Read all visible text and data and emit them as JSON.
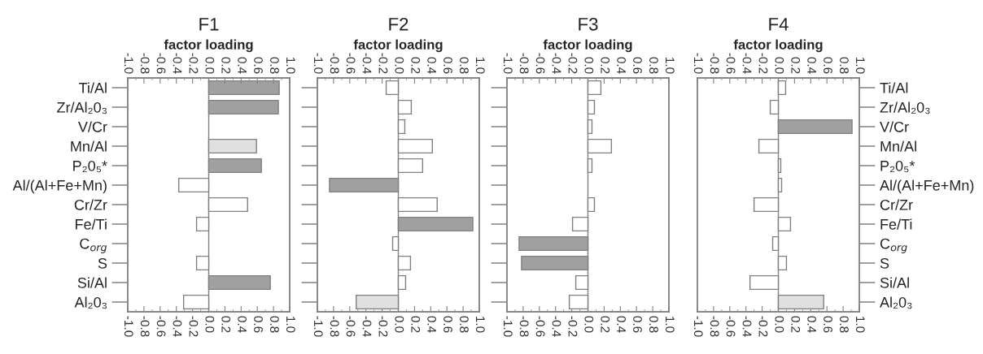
{
  "chart_data": [
    {
      "type": "bar",
      "orientation": "horizontal",
      "title": "F1",
      "x2label": "factor loading",
      "categories": [
        "Ti/Al",
        "Zr/Al₂0₃",
        "V/Cr",
        "Mn/Al",
        "P₂0₅*",
        "Al/(Al+Fe+Mn)",
        "Cr/Zr",
        "Fe/Ti",
        "C$_{org}$",
        "S",
        "Si/Al",
        "Al₂0₃"
      ],
      "values": [
        0.87,
        0.86,
        null,
        0.59,
        0.65,
        -0.37,
        0.48,
        -0.15,
        null,
        -0.15,
        0.76,
        -0.31
      ],
      "colors": [
        "#a0a0a0",
        "#a0a0a0",
        "#ffffff",
        "#e0e0e0",
        "#a0a0a0",
        "#ffffff",
        "#ffffff",
        "#ffffff",
        "#ffffff",
        "#ffffff",
        "#a0a0a0",
        "#ffffff"
      ],
      "xlim": [
        -1.0,
        1.0
      ],
      "xticks": [
        {
          "value": -1.0,
          "label": "-1.0"
        },
        {
          "value": -0.8,
          "label": "-0.8"
        },
        {
          "value": -0.6,
          "label": "-0.6"
        },
        {
          "value": -0.4,
          "label": "-0.4"
        },
        {
          "value": -0.2,
          "label": "-0.2"
        },
        {
          "value": 0.0,
          "label": "0.0"
        },
        {
          "value": 0.2,
          "label": "0.2"
        },
        {
          "value": 0.4,
          "label": "0.4"
        },
        {
          "value": 0.6,
          "label": "0.6"
        },
        {
          "value": 0.8,
          "label": "0.8"
        },
        {
          "value": 1.0,
          "label": "1.0"
        }
      ],
      "x2lim": [
        -1.0,
        1.0
      ],
      "x2ticks": [
        {
          "value": -1.0,
          "label": "-1.0"
        },
        {
          "value": -0.8,
          "label": "-0.8"
        },
        {
          "value": -0.6,
          "label": "-0.6"
        },
        {
          "value": -0.4,
          "label": "-0.4"
        },
        {
          "value": -0.2,
          "label": "-0.2"
        },
        {
          "value": 0.0,
          "label": "0.0"
        },
        {
          "value": 0.2,
          "label": "0.2"
        },
        {
          "value": 0.4,
          "label": "0.4"
        },
        {
          "value": 0.6,
          "label": "0.6"
        },
        {
          "value": 0.8,
          "label": "0.8"
        },
        {
          "value": 1.0,
          "label": "1.0"
        }
      ],
      "ref_lines": [
        {
          "axis": "x",
          "value": 0.0
        }
      ],
      "grid": false,
      "legend": false
    },
    {
      "type": "bar",
      "orientation": "horizontal",
      "title": "F2",
      "x2label": "factor loading",
      "tick_labels": "x",
      "categories": [
        null,
        null,
        null,
        null,
        null,
        null,
        null,
        null,
        null,
        null,
        null,
        null
      ],
      "values": [
        -0.15,
        0.16,
        0.08,
        0.42,
        0.3,
        -0.85,
        0.48,
        0.92,
        -0.07,
        0.15,
        0.09,
        -0.52
      ],
      "colors": [
        "#ffffff",
        "#ffffff",
        "#ffffff",
        "#ffffff",
        "#ffffff",
        "#a0a0a0",
        "#ffffff",
        "#a0a0a0",
        "#ffffff",
        "#ffffff",
        "#ffffff",
        "#e0e0e0"
      ],
      "xlim": [
        -1.0,
        1.0
      ],
      "xticks": [
        {
          "value": -1.0,
          "label": "-1.0"
        },
        {
          "value": -0.8,
          "label": "-0.8"
        },
        {
          "value": -0.6,
          "label": "-0.6"
        },
        {
          "value": -0.4,
          "label": "-0.4"
        },
        {
          "value": -0.2,
          "label": "-0.2"
        },
        {
          "value": 0.0,
          "label": "0.0"
        },
        {
          "value": 0.2,
          "label": "0.2"
        },
        {
          "value": 0.4,
          "label": "0.4"
        },
        {
          "value": 0.6,
          "label": "0.6"
        },
        {
          "value": 0.8,
          "label": "0.8"
        },
        {
          "value": 1.0,
          "label": "1.0"
        }
      ],
      "x2lim": [
        -1.0,
        1.0
      ],
      "x2ticks": [
        {
          "value": -1.0,
          "label": "-1.0"
        },
        {
          "value": -0.8,
          "label": "-0.8"
        },
        {
          "value": -0.6,
          "label": "-0.6"
        },
        {
          "value": -0.4,
          "label": "-0.4"
        },
        {
          "value": -0.2,
          "label": "-0.2"
        },
        {
          "value": 0.0,
          "label": "0.0"
        },
        {
          "value": 0.2,
          "label": "0.2"
        },
        {
          "value": 0.4,
          "label": "0.4"
        },
        {
          "value": 0.6,
          "label": "0.6"
        },
        {
          "value": 0.8,
          "label": "0.8"
        },
        {
          "value": 1.0,
          "label": "1.0"
        }
      ],
      "ref_lines": [
        {
          "axis": "x",
          "value": 0.0
        }
      ],
      "grid": false,
      "legend": false
    },
    {
      "type": "bar",
      "orientation": "horizontal",
      "title": "F3",
      "x2label": "factor loading",
      "tick_labels": "x",
      "categories": [
        null,
        null,
        null,
        null,
        null,
        null,
        null,
        null,
        null,
        null,
        null,
        null
      ],
      "values": [
        0.16,
        0.08,
        0.05,
        0.29,
        0.05,
        null,
        0.08,
        -0.19,
        -0.85,
        -0.82,
        -0.15,
        -0.23
      ],
      "colors": [
        "#ffffff",
        "#ffffff",
        "#ffffff",
        "#ffffff",
        "#ffffff",
        "#ffffff",
        "#ffffff",
        "#ffffff",
        "#a0a0a0",
        "#a0a0a0",
        "#ffffff",
        "#ffffff"
      ],
      "xlim": [
        -1.0,
        1.0
      ],
      "xticks": [
        {
          "value": -1.0,
          "label": "-1.0"
        },
        {
          "value": -0.8,
          "label": "-0.8"
        },
        {
          "value": -0.6,
          "label": "-0.6"
        },
        {
          "value": -0.4,
          "label": "-0.4"
        },
        {
          "value": -0.2,
          "label": "-0.2"
        },
        {
          "value": 0.0,
          "label": "0.0"
        },
        {
          "value": 0.2,
          "label": "0.2"
        },
        {
          "value": 0.4,
          "label": "0.4"
        },
        {
          "value": 0.6,
          "label": "0.6"
        },
        {
          "value": 0.8,
          "label": "0.8"
        },
        {
          "value": 1.0,
          "label": "1.0"
        }
      ],
      "x2lim": [
        -1.0,
        1.0
      ],
      "x2ticks": [
        {
          "value": -1.0,
          "label": "-1.0"
        },
        {
          "value": -0.8,
          "label": "-0.8"
        },
        {
          "value": -0.6,
          "label": "-0.6"
        },
        {
          "value": -0.4,
          "label": "-0.4"
        },
        {
          "value": -0.2,
          "label": "-0.2"
        },
        {
          "value": 0.0,
          "label": "0.0"
        },
        {
          "value": 0.2,
          "label": "0.2"
        },
        {
          "value": 0.4,
          "label": "0.4"
        },
        {
          "value": 0.6,
          "label": "0.6"
        },
        {
          "value": 0.8,
          "label": "0.8"
        },
        {
          "value": 1.0,
          "label": "1.0"
        }
      ],
      "ref_lines": [
        {
          "axis": "x",
          "value": 0.0
        }
      ],
      "grid": false,
      "legend": false
    },
    {
      "type": "bar",
      "orientation": "horizontal",
      "title": "F4",
      "x2label": "factor loading",
      "categories": [
        "Ti/Al",
        "Zr/Al₂0₃",
        "V/Cr",
        "Mn/Al",
        "P₂0₅*",
        "Al/(Al+Fe+Mn)",
        "Cr/Zr",
        "Fe/Ti",
        "C$_{org}$",
        "S",
        "Si/Al",
        "Al₂0₃"
      ],
      "values": [
        0.09,
        -0.1,
        0.91,
        -0.24,
        0.03,
        0.04,
        -0.3,
        0.15,
        -0.07,
        0.1,
        -0.35,
        0.56
      ],
      "colors": [
        "#ffffff",
        "#ffffff",
        "#a0a0a0",
        "#ffffff",
        "#ffffff",
        "#ffffff",
        "#ffffff",
        "#ffffff",
        "#ffffff",
        "#ffffff",
        "#ffffff",
        "#e0e0e0"
      ],
      "xlim": [
        -1.0,
        1.0
      ],
      "xticks": [
        {
          "value": -1.0,
          "label": "-1.0"
        },
        {
          "value": -0.8,
          "label": "-0.8"
        },
        {
          "value": -0.6,
          "label": "-0.6"
        },
        {
          "value": -0.4,
          "label": "-0.4"
        },
        {
          "value": -0.2,
          "label": "-0.2"
        },
        {
          "value": 0.0,
          "label": "0.0"
        },
        {
          "value": 0.2,
          "label": "0.2"
        },
        {
          "value": 0.4,
          "label": "0.4"
        },
        {
          "value": 0.6,
          "label": "0.6"
        },
        {
          "value": 0.8,
          "label": "0.8"
        },
        {
          "value": 1.0,
          "label": "1.0"
        }
      ],
      "x2lim": [
        -1.0,
        1.0
      ],
      "x2ticks": [
        {
          "value": -1.0,
          "label": "-1.0"
        },
        {
          "value": -0.8,
          "label": "-0.8"
        },
        {
          "value": -0.6,
          "label": "-0.6"
        },
        {
          "value": -0.4,
          "label": "-0.4"
        },
        {
          "value": -0.2,
          "label": "-0.2"
        },
        {
          "value": 0.0,
          "label": "0.0"
        },
        {
          "value": 0.2,
          "label": "0.2"
        },
        {
          "value": 0.4,
          "label": "0.4"
        },
        {
          "value": 0.6,
          "label": "0.6"
        },
        {
          "value": 0.8,
          "label": "0.8"
        },
        {
          "value": 1.0,
          "label": "1.0"
        }
      ],
      "ref_lines": [
        {
          "axis": "x",
          "value": 0.0
        }
      ],
      "grid": false,
      "legend": false
    }
  ]
}
